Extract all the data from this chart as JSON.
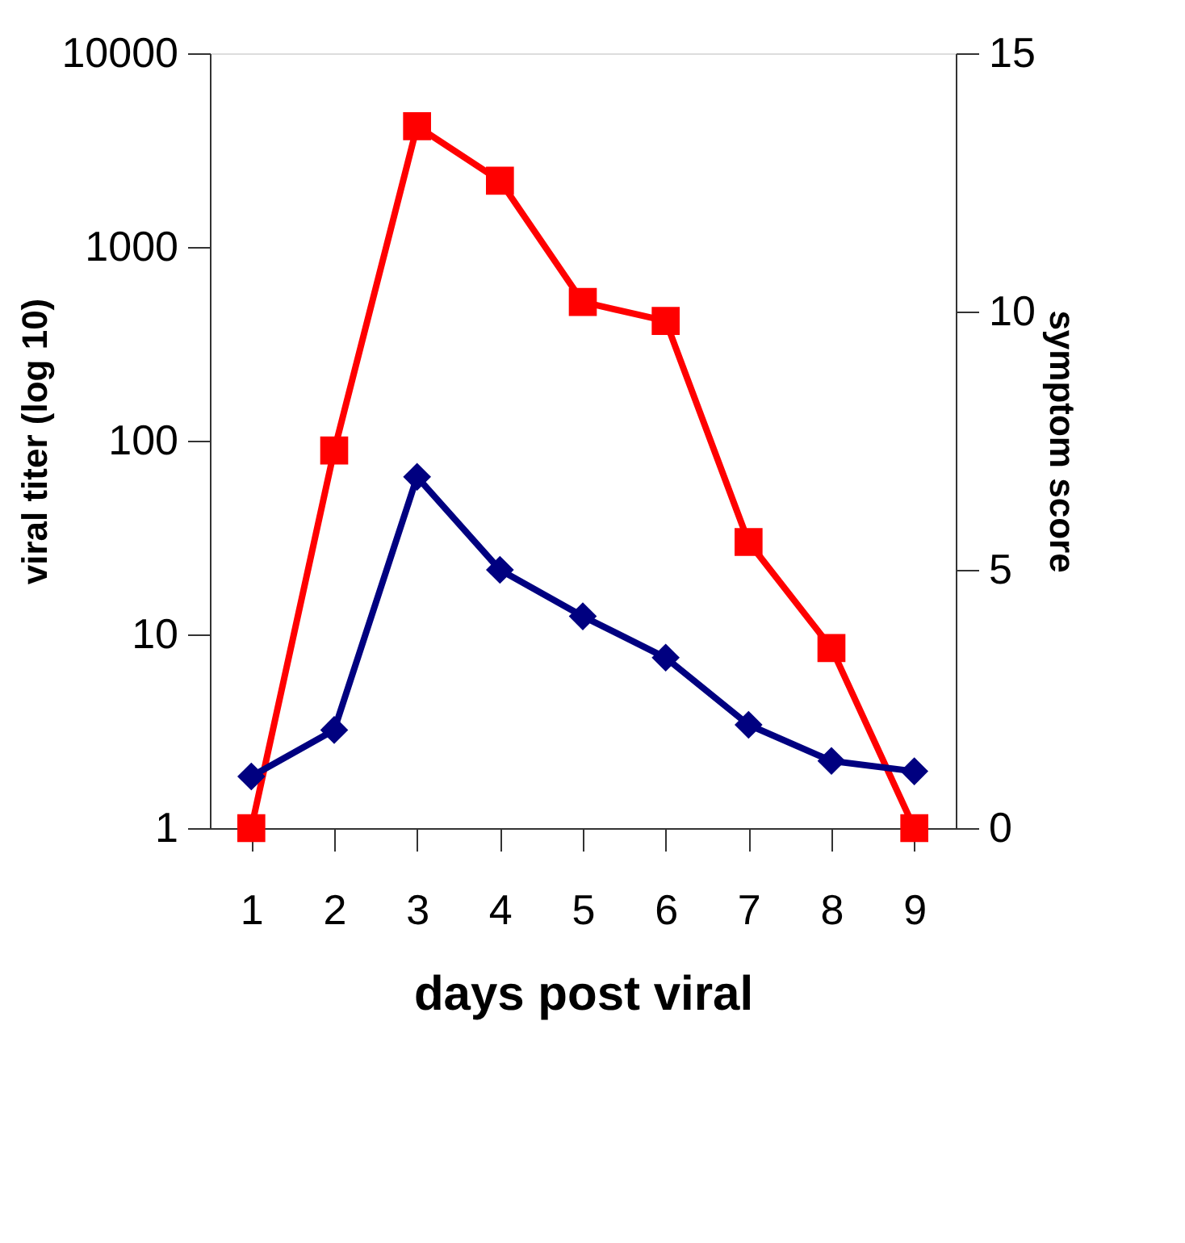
{
  "chart_data": {
    "type": "line",
    "xlabel": "days post viral",
    "ylabel": "viral titer (log 10)",
    "y2label": "symptom score",
    "categories": [
      "1",
      "2",
      "3",
      "4",
      "5",
      "6",
      "7",
      "8",
      "9"
    ],
    "series": [
      {
        "color": "#ff0000",
        "marker": "square",
        "values": [
          1,
          89,
          4200,
          2200,
          520,
          415,
          30,
          8.5,
          1
        ]
      },
      {
        "color": "#000080",
        "marker": "diamond",
        "axis": "y2",
        "values": [
          1.0,
          1.9,
          6.8,
          5.0,
          4.1,
          3.3,
          2.0,
          1.3,
          1.1
        ]
      }
    ],
    "log": "y",
    "ylim": [
      1,
      10000
    ],
    "yticks": [
      1,
      10,
      100,
      1000,
      10000
    ],
    "y2lim": [
      0,
      15
    ],
    "y2ticks": [
      0,
      5,
      10,
      15
    ],
    "grid": false,
    "line_style": "solid"
  }
}
